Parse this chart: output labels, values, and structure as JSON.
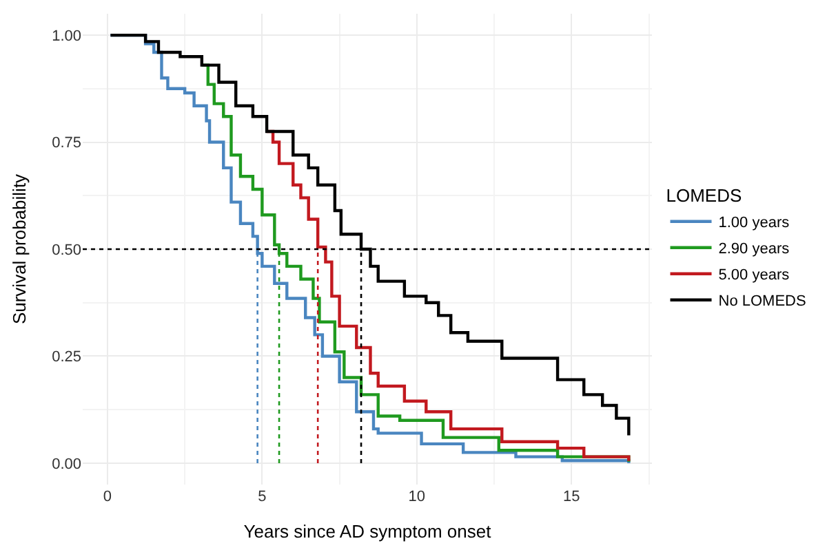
{
  "chart_data": {
    "type": "step",
    "xlabel": "Years since AD symptom onset",
    "ylabel": "Survival probability",
    "legend_title": "LOMEDS",
    "legend": "right",
    "grid": true,
    "line_style": "solid",
    "marker": "none",
    "xlim": [
      -0.8,
      17.6
    ],
    "xticks": [
      0,
      5,
      10,
      15
    ],
    "ylim": [
      -0.05,
      1.05
    ],
    "yticks": [
      {
        "value": 0,
        "label": "0.00"
      },
      {
        "value": 0.25,
        "label": "0.25"
      },
      {
        "value": 0.5,
        "label": "0.50"
      },
      {
        "value": 0.75,
        "label": "0.75"
      },
      {
        "value": 1,
        "label": "1.00"
      }
    ],
    "series": [
      {
        "name": "1.00 years",
        "color": "#4a86c0",
        "x": [
          0.1,
          1.23,
          1.5,
          1.75,
          1.95,
          2.5,
          2.8,
          3.2,
          3.3,
          3.75,
          4.0,
          4.3,
          4.7,
          4.85,
          5.0,
          5.4,
          5.8,
          6.4,
          6.7,
          6.95,
          7.5,
          8.05,
          8.6,
          8.75,
          10.15,
          11.5,
          13.2,
          14.7,
          16.85
        ],
        "values": [
          1.0,
          0.98,
          0.96,
          0.9,
          0.875,
          0.865,
          0.835,
          0.8,
          0.75,
          0.69,
          0.61,
          0.56,
          0.53,
          0.49,
          0.46,
          0.42,
          0.385,
          0.34,
          0.3,
          0.25,
          0.19,
          0.12,
          0.08,
          0.07,
          0.045,
          0.025,
          0.015,
          0.006,
          0.0
        ]
      },
      {
        "name": "2.90 years",
        "color": "#1f9a1f",
        "x": [
          3.05,
          3.25,
          3.45,
          3.75,
          4.0,
          4.3,
          4.7,
          5.0,
          5.4,
          5.55,
          5.8,
          6.25,
          6.65,
          6.85,
          7.35,
          7.65,
          8.2,
          8.75,
          9.45,
          10.85,
          12.65,
          14.55,
          16.85
        ],
        "values": [
          0.93,
          0.885,
          0.84,
          0.81,
          0.72,
          0.67,
          0.64,
          0.58,
          0.51,
          0.49,
          0.46,
          0.43,
          0.385,
          0.33,
          0.26,
          0.2,
          0.16,
          0.11,
          0.1,
          0.06,
          0.03,
          0.015,
          0.003
        ]
      },
      {
        "name": "5.00 years",
        "color": "#c2191f",
        "x": [
          5.15,
          5.35,
          5.55,
          6.0,
          6.25,
          6.5,
          6.8,
          7.05,
          7.25,
          7.5,
          8.05,
          8.5,
          8.75,
          9.6,
          10.3,
          11.1,
          12.75,
          14.55,
          15.4,
          16.85
        ],
        "values": [
          0.775,
          0.75,
          0.7,
          0.65,
          0.62,
          0.57,
          0.505,
          0.47,
          0.39,
          0.32,
          0.27,
          0.21,
          0.18,
          0.145,
          0.12,
          0.08,
          0.05,
          0.035,
          0.015,
          0.005
        ]
      },
      {
        "name": "No LOMEDS",
        "color": "#000000",
        "x": [
          0.1,
          0.85,
          1.23,
          1.65,
          2.35,
          3.05,
          3.6,
          4.15,
          4.7,
          5.15,
          6.0,
          6.5,
          6.8,
          7.35,
          7.55,
          8.2,
          8.5,
          8.75,
          9.6,
          10.3,
          10.7,
          11.1,
          11.65,
          12.75,
          14.1,
          14.55,
          15.4,
          16.0,
          16.45,
          16.85
        ],
        "values": [
          1.0,
          1.0,
          0.985,
          0.96,
          0.95,
          0.93,
          0.89,
          0.835,
          0.81,
          0.775,
          0.72,
          0.69,
          0.65,
          0.59,
          0.535,
          0.5,
          0.46,
          0.425,
          0.39,
          0.375,
          0.345,
          0.305,
          0.285,
          0.245,
          0.245,
          0.195,
          0.16,
          0.135,
          0.105,
          0.065
        ]
      }
    ],
    "ref_lines": [
      {
        "axis": "y",
        "value": 0.5,
        "color": "#000000",
        "line_style": "dotted"
      },
      {
        "axis": "x",
        "value": 4.85,
        "color": "#4a86c0",
        "line_style": "dotted"
      },
      {
        "axis": "x",
        "value": 5.55,
        "color": "#1f9a1f",
        "line_style": "dotted"
      },
      {
        "axis": "x",
        "value": 6.8,
        "color": "#c2191f",
        "line_style": "dotted"
      },
      {
        "axis": "x",
        "value": 8.2,
        "color": "#000000",
        "line_style": "dotted"
      }
    ]
  }
}
